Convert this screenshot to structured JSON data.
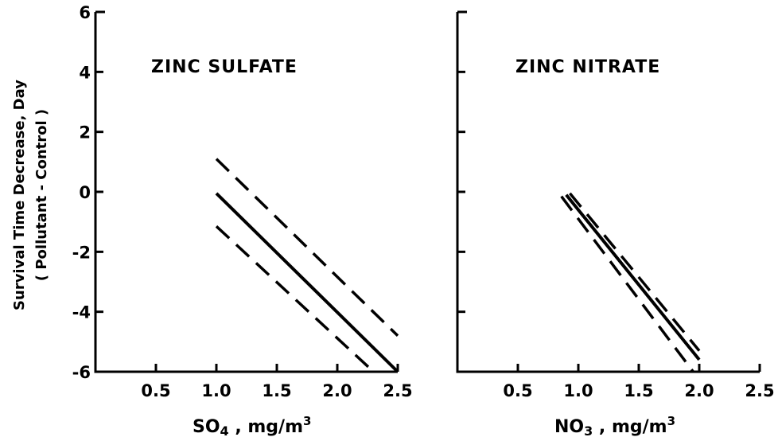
{
  "y_axis": {
    "label_line1": "Survival Time Decrease, Day",
    "label_line2": "( Pollutant - Control )"
  },
  "chart_data": [
    {
      "type": "line",
      "title": "ZINC SULFATE",
      "xlabel_main": "SO",
      "xlabel_sub": "4",
      "xlabel_unit": " , mg/m",
      "xlabel_sup": "3",
      "xlim": [
        0,
        2.5
      ],
      "ylim": [
        -6,
        6
      ],
      "xticks": [
        0.5,
        1.0,
        1.5,
        2.0,
        2.5
      ],
      "xtick_labels": [
        "0.5",
        "1.0",
        "1.5",
        "2.0",
        "2.5"
      ],
      "yticks": [
        6,
        4,
        2,
        0,
        -2,
        -4,
        -6
      ],
      "ytick_labels": [
        "6",
        "4",
        "2",
        "0",
        "-2",
        "-4",
        "-6"
      ],
      "series": [
        {
          "style": "dashed",
          "x": [
            1.0,
            2.5
          ],
          "y": [
            1.1,
            -4.8
          ]
        },
        {
          "style": "solid",
          "x": [
            1.0,
            2.5
          ],
          "y": [
            -0.05,
            -6.0
          ]
        },
        {
          "style": "dashed",
          "x": [
            1.0,
            2.3
          ],
          "y": [
            -1.15,
            -6.0
          ]
        }
      ]
    },
    {
      "type": "line",
      "title": "ZINC NITRATE",
      "xlabel_main": "NO",
      "xlabel_sub": "3",
      "xlabel_unit": " , mg/m",
      "xlabel_sup": "3",
      "xlim": [
        0,
        2.5
      ],
      "ylim": [
        -6,
        6
      ],
      "xticks": [
        0.5,
        1.0,
        1.5,
        2.0,
        2.5
      ],
      "xtick_labels": [
        "0.5",
        "1.0",
        "1.5",
        "2.0",
        "2.5"
      ],
      "yticks": [
        6,
        4,
        2,
        0,
        -2,
        -4,
        -6
      ],
      "ytick_labels": [
        "",
        "",
        "",
        "",
        "",
        "",
        ""
      ],
      "series": [
        {
          "style": "dashed",
          "x": [
            0.93,
            2.0
          ],
          "y": [
            -0.05,
            -5.3
          ]
        },
        {
          "style": "solid",
          "x": [
            0.9,
            2.0
          ],
          "y": [
            -0.1,
            -5.6
          ]
        },
        {
          "style": "dashed",
          "x": [
            0.86,
            1.95
          ],
          "y": [
            -0.15,
            -6.0
          ]
        }
      ]
    }
  ]
}
